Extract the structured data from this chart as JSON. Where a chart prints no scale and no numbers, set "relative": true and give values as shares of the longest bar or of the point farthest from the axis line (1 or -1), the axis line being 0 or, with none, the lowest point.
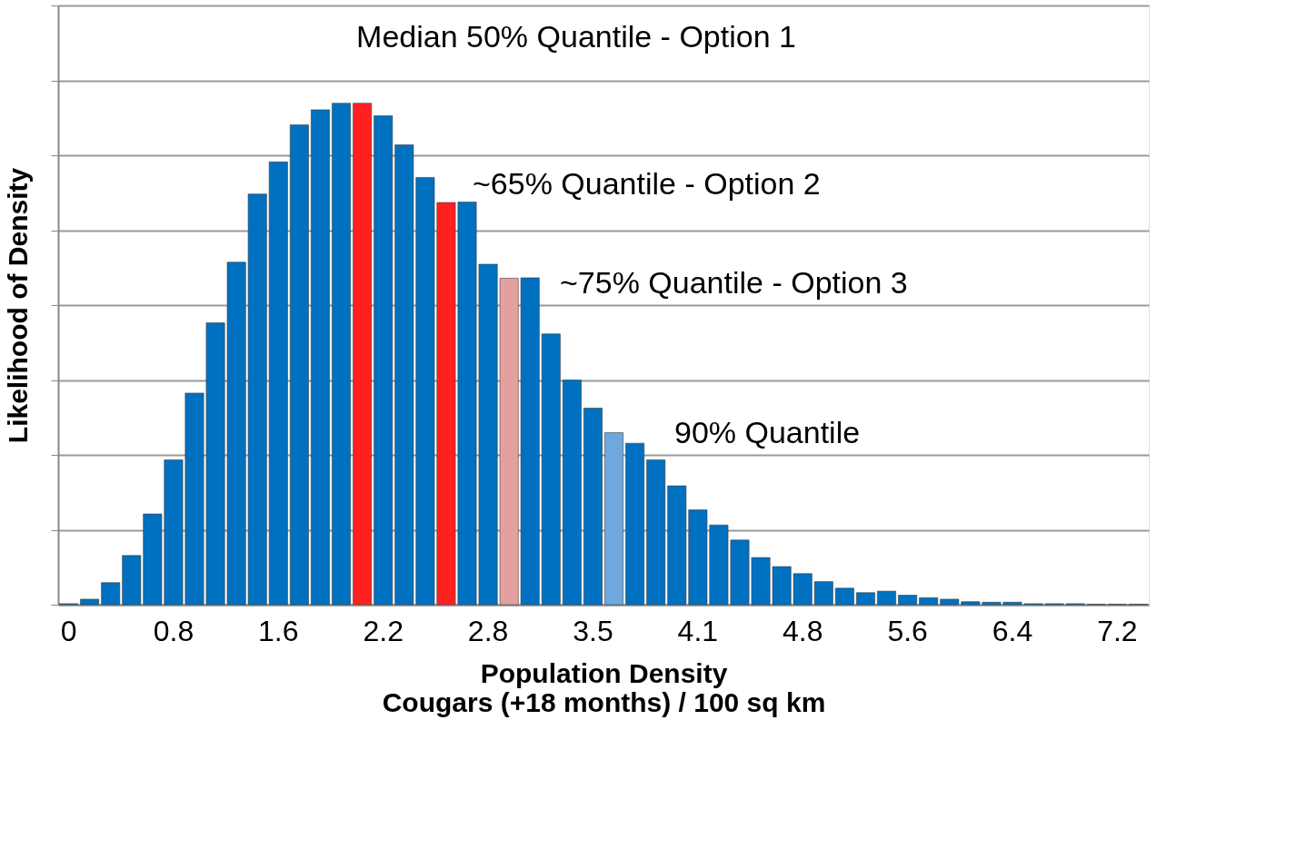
{
  "chart_data": {
    "type": "bar",
    "relative": true,
    "grid": "y",
    "xlabel": "Population Density\nCougars (+18 months) / 100 sq km",
    "ylabel": "Likelihood of Density",
    "categories": [
      "0",
      null,
      null,
      null,
      null,
      "0.8",
      null,
      null,
      null,
      null,
      "1.6",
      null,
      null,
      null,
      null,
      "2.2",
      null,
      null,
      null,
      null,
      "2.8",
      null,
      null,
      null,
      null,
      "3.5",
      null,
      null,
      null,
      null,
      "4.1",
      null,
      null,
      null,
      null,
      "4.8",
      null,
      null,
      null,
      null,
      "5.6",
      null,
      null,
      null,
      null,
      "6.4",
      null,
      null,
      null,
      null,
      "7.2",
      null
    ],
    "values": [
      0.002,
      0.011,
      0.044,
      0.098,
      0.181,
      0.289,
      0.422,
      0.562,
      0.683,
      0.819,
      0.883,
      0.957,
      0.987,
      1.0,
      1.0,
      0.975,
      0.917,
      0.852,
      0.802,
      0.803,
      0.679,
      0.651,
      0.652,
      0.54,
      0.448,
      0.392,
      0.343,
      0.322,
      0.289,
      0.237,
      0.189,
      0.159,
      0.129,
      0.094,
      0.076,
      0.062,
      0.046,
      0.033,
      0.024,
      0.027,
      0.019,
      0.014,
      0.011,
      0.006,
      0.005,
      0.005,
      0.002,
      0.002,
      0.002,
      0.001,
      0.001,
      0.001
    ],
    "colors": [
      "#0070c0",
      "#0070c0",
      "#0070c0",
      "#0070c0",
      "#0070c0",
      "#0070c0",
      "#0070c0",
      "#0070c0",
      "#0070c0",
      "#0070c0",
      "#0070c0",
      "#0070c0",
      "#0070c0",
      "#0070c0",
      "#ff2020",
      "#0070c0",
      "#0070c0",
      "#0070c0",
      "#ff2020",
      "#0070c0",
      "#0070c0",
      "#e3a0a0",
      "#0070c0",
      "#0070c0",
      "#0070c0",
      "#0070c0",
      "#6fa8dc",
      "#0070c0",
      "#0070c0",
      "#0070c0",
      "#0070c0",
      "#0070c0",
      "#0070c0",
      "#0070c0",
      "#0070c0",
      "#0070c0",
      "#0070c0",
      "#0070c0",
      "#0070c0",
      "#0070c0",
      "#0070c0",
      "#0070c0",
      "#0070c0",
      "#0070c0",
      "#0070c0",
      "#0070c0",
      "#0070c0",
      "#0070c0",
      "#0070c0",
      "#0070c0",
      "#0070c0",
      "#0070c0"
    ],
    "annotations": [
      "Median 50% Quantile - Option 1",
      "~65% Quantile - Option 2",
      "~75% Quantile - Option 3",
      "90% Quantile"
    ]
  }
}
